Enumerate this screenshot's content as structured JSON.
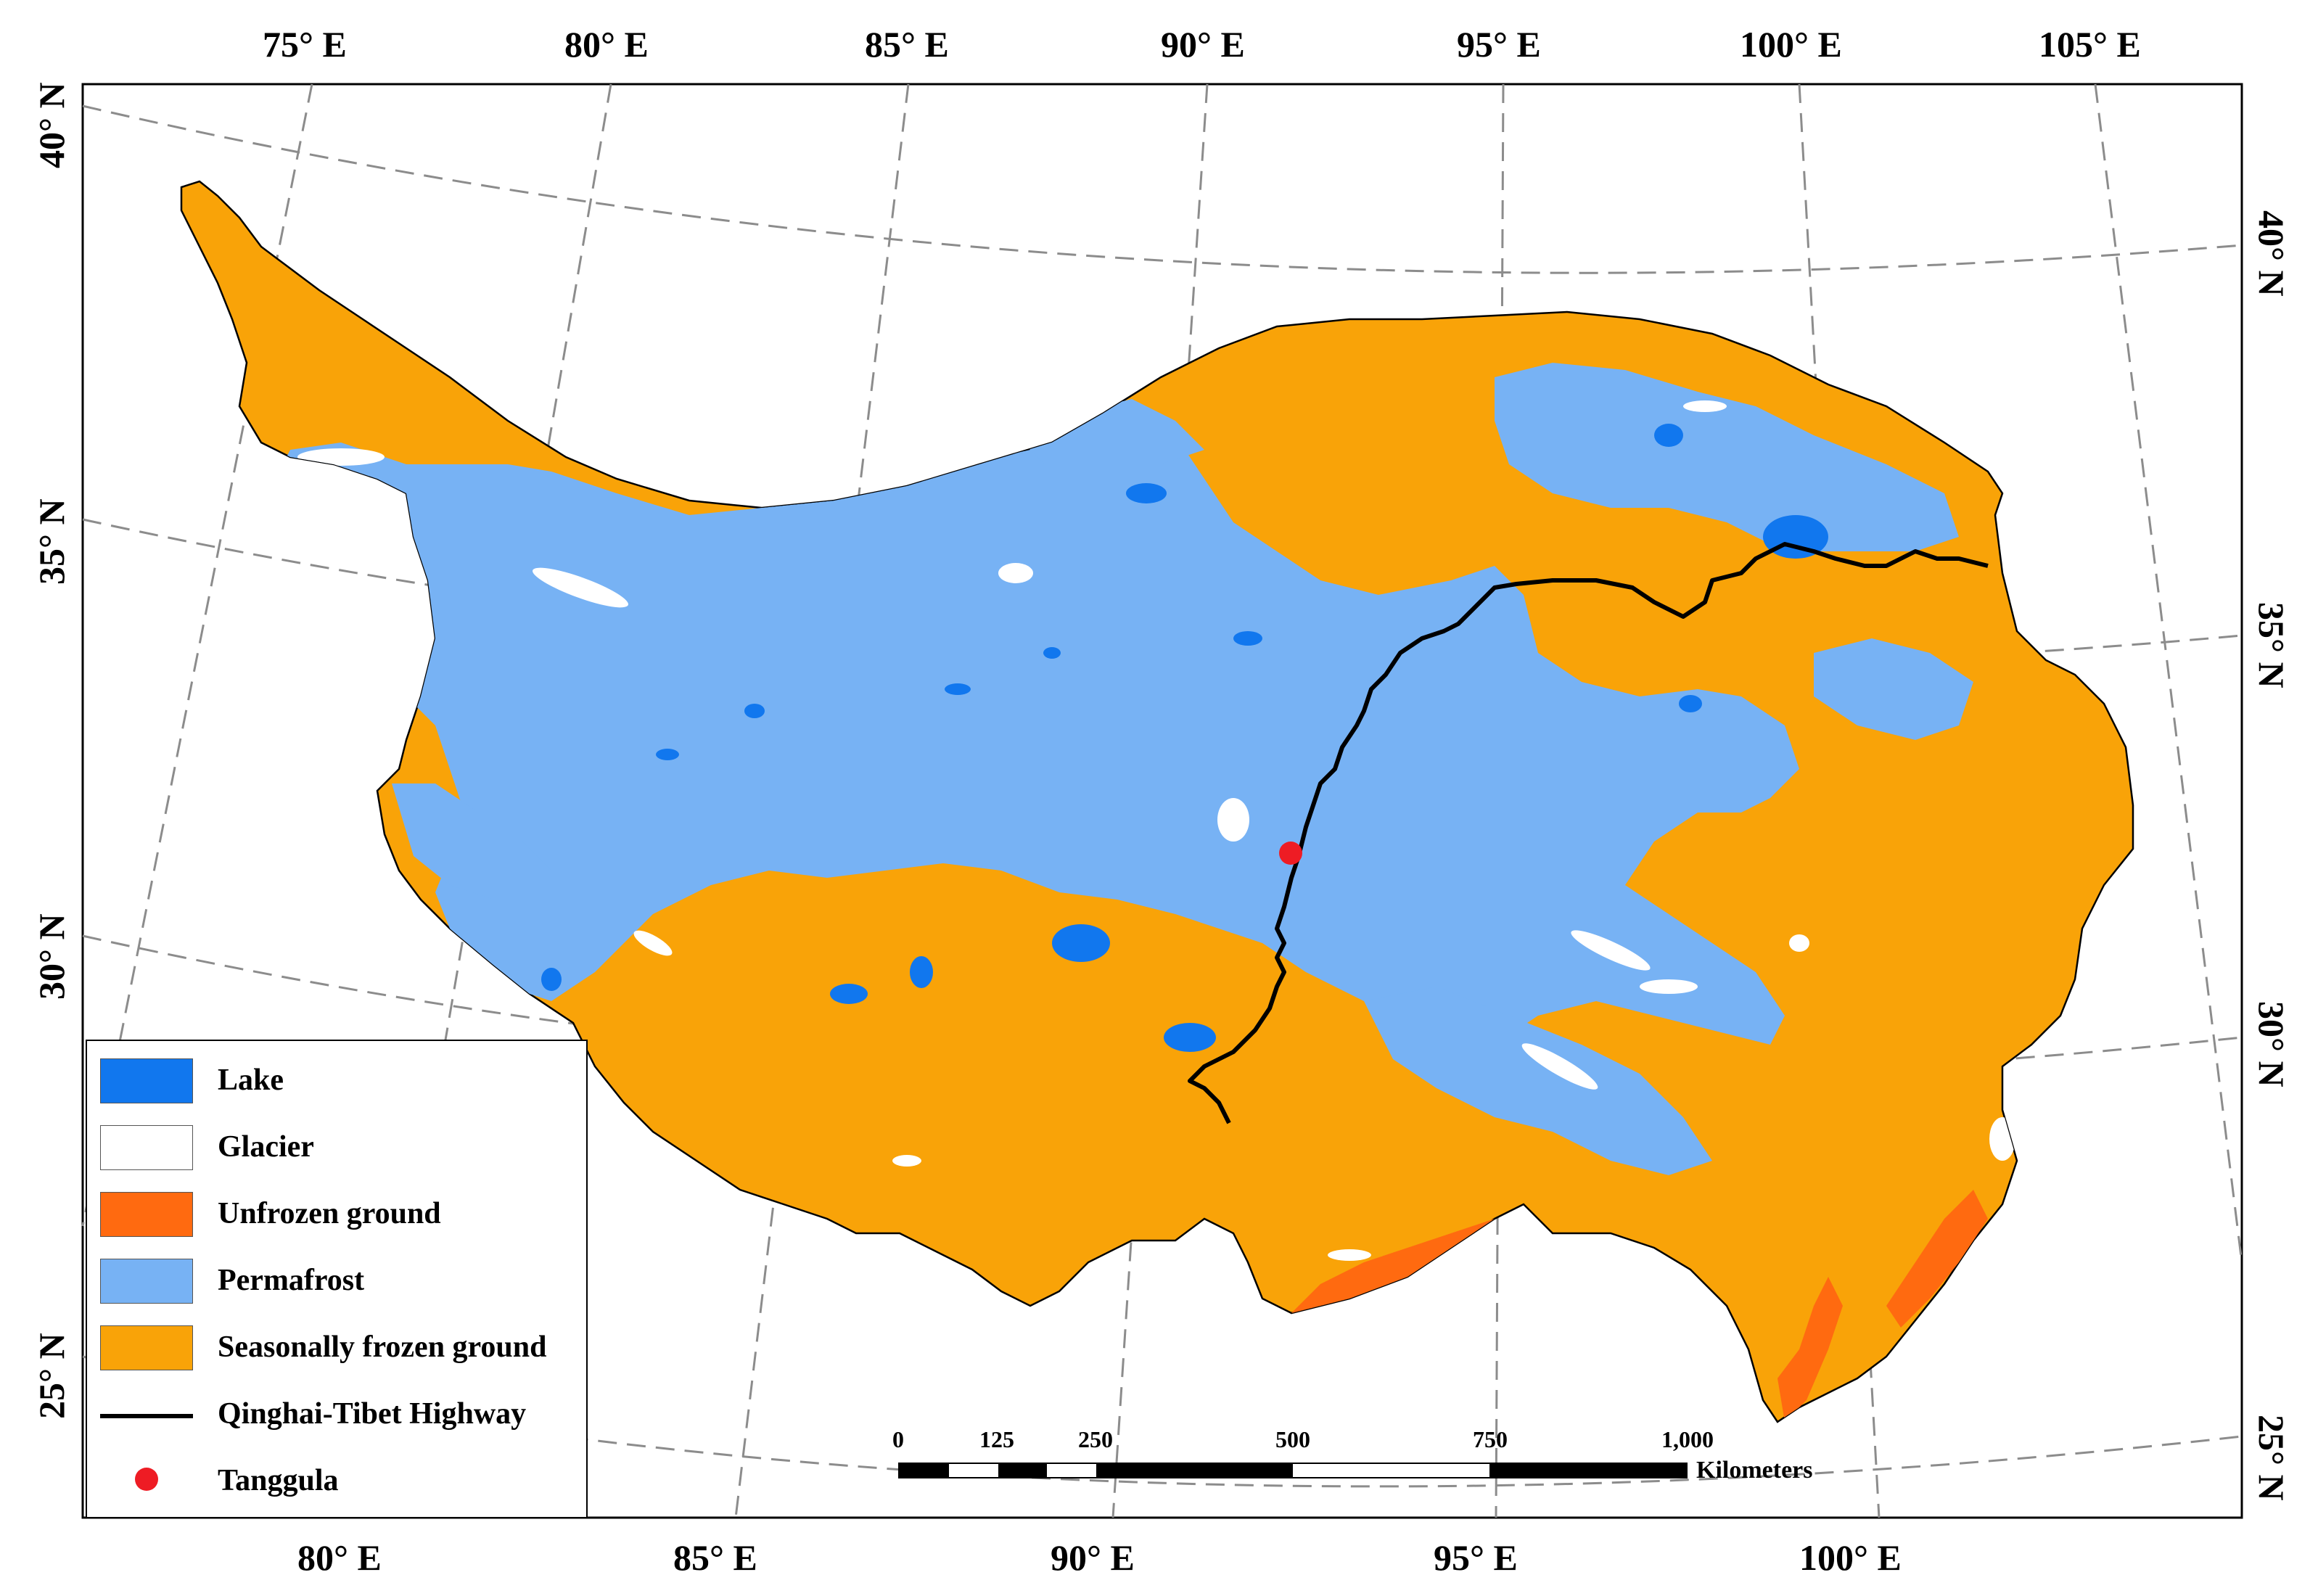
{
  "map": {
    "top_lon_labels": [
      "75° E",
      "80° E",
      "85° E",
      "90° E",
      "95° E",
      "100° E",
      "105° E"
    ],
    "bottom_lon_labels": [
      "80° E",
      "85° E",
      "90° E",
      "95° E",
      "100° E"
    ],
    "left_lat_labels": [
      "40° N",
      "35° N",
      "30° N",
      "25° N"
    ],
    "right_lat_labels": [
      "40° N",
      "35° N",
      "30° N",
      "25° N"
    ]
  },
  "legend": {
    "items": [
      {
        "type": "swatch",
        "label": "Lake",
        "color": "#1177ee"
      },
      {
        "type": "swatch",
        "label": "Glacier",
        "color": "#ffffff"
      },
      {
        "type": "swatch",
        "label": "Unfrozen ground",
        "color": "#ff6a10"
      },
      {
        "type": "swatch",
        "label": "Permafrost",
        "color": "#77b2f4"
      },
      {
        "type": "swatch",
        "label": "Seasonally frozen ground",
        "color": "#f9a308"
      },
      {
        "type": "line",
        "label": "Qinghai-Tibet Highway",
        "color": "#000000"
      },
      {
        "type": "dot",
        "label": "Tanggula",
        "color": "#ee1c24"
      }
    ]
  },
  "scale_bar": {
    "ticks": [
      "0",
      "125",
      "250",
      "500",
      "750",
      "1,000"
    ],
    "unit": "Kilometers"
  },
  "colors": {
    "seasonally_frozen": "#f9a308",
    "permafrost": "#77b2f4",
    "lake": "#1177ee",
    "glacier": "#ffffff",
    "unfrozen": "#ff6a10",
    "highway": "#000000",
    "tanggula": "#ee1c24",
    "graticule": "#8c8c8c"
  }
}
